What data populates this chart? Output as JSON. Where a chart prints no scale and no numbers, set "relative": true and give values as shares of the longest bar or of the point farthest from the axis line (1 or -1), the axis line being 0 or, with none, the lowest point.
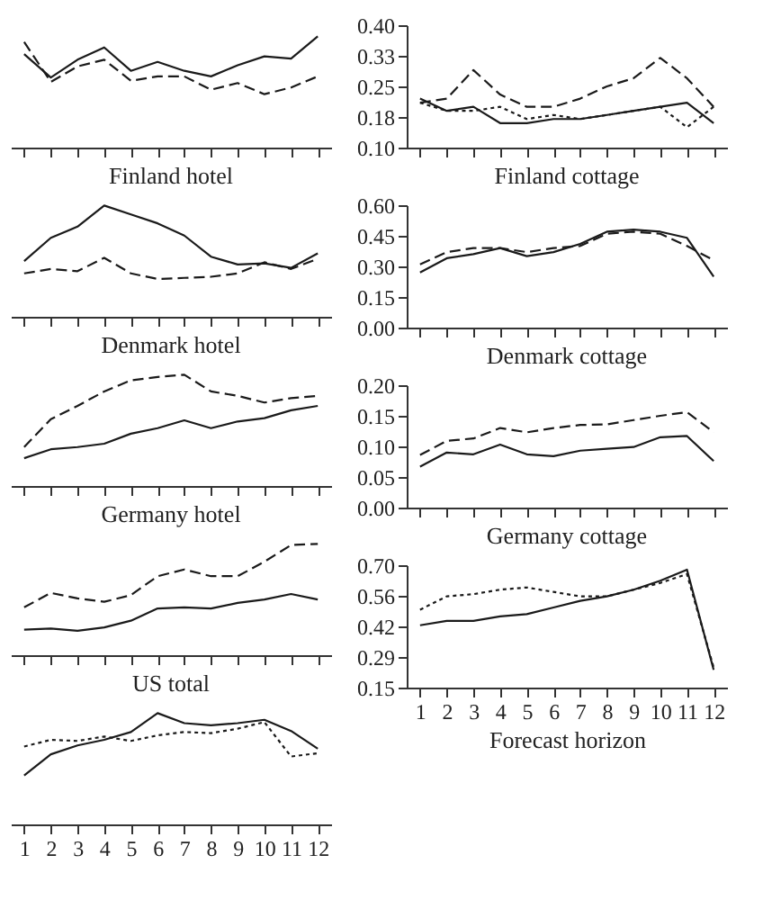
{
  "chart_data": [
    {
      "type": "line",
      "relative": true,
      "x": [
        1,
        2,
        3,
        4,
        5,
        6,
        7,
        8,
        9,
        10,
        11,
        12
      ],
      "xlim": [
        0.5,
        12.5
      ],
      "xticks": [
        1,
        2,
        3,
        4,
        5,
        6,
        7,
        8,
        9,
        10,
        11,
        12
      ],
      "tick_labels": false,
      "series": [
        {
          "color": "#1a1a1a",
          "line_style": "solid",
          "values": [
            0.84,
            0.63,
            0.79,
            0.9,
            0.69,
            0.77,
            0.69,
            0.64,
            0.74,
            0.82,
            0.8,
            1
          ]
        },
        {
          "color": "#1a1a1a",
          "line_style": "dashed",
          "values": [
            0.95,
            0.59,
            0.73,
            0.79,
            0.6,
            0.64,
            0.64,
            0.52,
            0.58,
            0.48,
            0.54,
            0.64
          ]
        }
      ]
    },
    {
      "type": "line",
      "x": [
        1,
        2,
        3,
        4,
        5,
        6,
        7,
        8,
        9,
        10,
        11,
        12
      ],
      "xlim": [
        0.5,
        12.5
      ],
      "xticks": [
        1,
        2,
        3,
        4,
        5,
        6,
        7,
        8,
        9,
        10,
        11,
        12
      ],
      "ylim": [
        0.1,
        0.4
      ],
      "yticks": [
        {
          "value": 0.1,
          "label": "0.10"
        },
        {
          "value": 0.175,
          "label": "0.18"
        },
        {
          "value": 0.25,
          "label": "0.25"
        },
        {
          "value": 0.325,
          "label": "0.33"
        },
        {
          "value": 0.4,
          "label": "0.40"
        }
      ],
      "tick_labels": "y",
      "series": [
        {
          "color": "#1a1a1a",
          "line_style": "solid",
          "values": [
            0.22,
            0.19,
            0.2,
            0.16,
            0.16,
            0.17,
            0.17,
            0.18,
            0.19,
            0.2,
            0.21,
            0.16
          ]
        },
        {
          "color": "#1a1a1a",
          "line_style": "dashed",
          "values": [
            0.21,
            0.22,
            0.29,
            0.23,
            0.2,
            0.2,
            0.22,
            0.25,
            0.27,
            0.32,
            0.27,
            0.2
          ]
        },
        {
          "color": "#1a1a1a",
          "line_style": "dotted",
          "values": [
            0.21,
            0.19,
            0.19,
            0.2,
            0.17,
            0.18,
            0.17,
            0.18,
            0.19,
            0.2,
            0.15,
            0.2
          ]
        }
      ]
    },
    {
      "type": "line",
      "title": "Finland hotel",
      "relative": true,
      "x": [
        1,
        2,
        3,
        4,
        5,
        6,
        7,
        8,
        9,
        10,
        11,
        12
      ],
      "xlim": [
        0.5,
        12.5
      ],
      "xticks": [
        1,
        2,
        3,
        4,
        5,
        6,
        7,
        8,
        9,
        10,
        11,
        12
      ],
      "tick_labels": false,
      "series": [
        {
          "color": "#1a1a1a",
          "line_style": "solid",
          "values": [
            0.5,
            0.71,
            0.81,
            1,
            0.92,
            0.84,
            0.73,
            0.54,
            0.47,
            0.48,
            0.44,
            0.57
          ]
        },
        {
          "color": "#1a1a1a",
          "line_style": "dashed",
          "values": [
            0.39,
            0.43,
            0.41,
            0.53,
            0.39,
            0.34,
            0.35,
            0.36,
            0.39,
            0.49,
            0.43,
            0.52
          ]
        }
      ]
    },
    {
      "type": "line",
      "title": "Finland cottage",
      "x": [
        1,
        2,
        3,
        4,
        5,
        6,
        7,
        8,
        9,
        10,
        11,
        12
      ],
      "xlim": [
        0.5,
        12.5
      ],
      "xticks": [
        1,
        2,
        3,
        4,
        5,
        6,
        7,
        8,
        9,
        10,
        11,
        12
      ],
      "ylim": [
        0,
        0.6
      ],
      "yticks": [
        {
          "value": 0,
          "label": "0.00"
        },
        {
          "value": 0.15,
          "label": "0.15"
        },
        {
          "value": 0.3,
          "label": "0.30"
        },
        {
          "value": 0.45,
          "label": "0.45"
        },
        {
          "value": 0.6,
          "label": "0.60"
        }
      ],
      "tick_labels": "y",
      "series": [
        {
          "color": "#1a1a1a",
          "line_style": "solid",
          "values": [
            0.27,
            0.34,
            0.36,
            0.39,
            0.35,
            0.37,
            0.41,
            0.47,
            0.48,
            0.47,
            0.44,
            0.25
          ]
        },
        {
          "color": "#1a1a1a",
          "line_style": "dashed",
          "values": [
            0.31,
            0.37,
            0.39,
            0.39,
            0.37,
            0.39,
            0.4,
            0.46,
            0.47,
            0.46,
            0.4,
            0.33
          ]
        }
      ]
    },
    {
      "type": "line",
      "title": "Denmark hotel",
      "relative": true,
      "x": [
        1,
        2,
        3,
        4,
        5,
        6,
        7,
        8,
        9,
        10,
        11,
        12
      ],
      "xlim": [
        0.5,
        12.5
      ],
      "xticks": [
        1,
        2,
        3,
        4,
        5,
        6,
        7,
        8,
        9,
        10,
        11,
        12
      ],
      "tick_labels": false,
      "series": [
        {
          "color": "#1a1a1a",
          "line_style": "solid",
          "values": [
            0.25,
            0.33,
            0.35,
            0.38,
            0.47,
            0.52,
            0.59,
            0.52,
            0.58,
            0.61,
            0.68,
            0.72
          ]
        },
        {
          "color": "#1a1a1a",
          "line_style": "dashed",
          "values": [
            0.35,
            0.6,
            0.72,
            0.85,
            0.95,
            0.98,
            1,
            0.85,
            0.81,
            0.75,
            0.79,
            0.81
          ]
        }
      ]
    },
    {
      "type": "line",
      "title": "Denmark cottage",
      "x": [
        1,
        2,
        3,
        4,
        5,
        6,
        7,
        8,
        9,
        10,
        11,
        12
      ],
      "xlim": [
        0.5,
        12.5
      ],
      "xticks": [
        1,
        2,
        3,
        4,
        5,
        6,
        7,
        8,
        9,
        10,
        11,
        12
      ],
      "ylim": [
        0,
        0.2
      ],
      "yticks": [
        {
          "value": 0,
          "label": "0.00"
        },
        {
          "value": 0.05,
          "label": "0.05"
        },
        {
          "value": 0.1,
          "label": "0.10"
        },
        {
          "value": 0.15,
          "label": "0.15"
        },
        {
          "value": 0.2,
          "label": "0.20"
        }
      ],
      "tick_labels": "y",
      "series": [
        {
          "color": "#1a1a1a",
          "line_style": "solid",
          "values": [
            0.067,
            0.09,
            0.087,
            0.103,
            0.087,
            0.084,
            0.093,
            0.096,
            0.099,
            0.115,
            0.117,
            0.076
          ]
        },
        {
          "color": "#1a1a1a",
          "line_style": "dashed",
          "values": [
            0.086,
            0.109,
            0.113,
            0.13,
            0.123,
            0.13,
            0.135,
            0.136,
            0.143,
            0.15,
            0.156,
            0.123
          ]
        }
      ]
    },
    {
      "type": "line",
      "title": "Germany hotel",
      "relative": true,
      "x": [
        1,
        2,
        3,
        4,
        5,
        6,
        7,
        8,
        9,
        10,
        11,
        12
      ],
      "xlim": [
        0.5,
        12.5
      ],
      "xticks": [
        1,
        2,
        3,
        4,
        5,
        6,
        7,
        8,
        9,
        10,
        11,
        12
      ],
      "tick_labels": false,
      "series": [
        {
          "color": "#1a1a1a",
          "line_style": "solid",
          "values": [
            0.23,
            0.24,
            0.22,
            0.25,
            0.31,
            0.42,
            0.43,
            0.42,
            0.47,
            0.5,
            0.55,
            0.5
          ]
        },
        {
          "color": "#1a1a1a",
          "line_style": "dashed",
          "values": [
            0.43,
            0.56,
            0.51,
            0.48,
            0.54,
            0.71,
            0.77,
            0.71,
            0.71,
            0.84,
            0.99,
            1
          ]
        }
      ]
    },
    {
      "type": "line",
      "title": "Germany cottage",
      "xlabel": "Forecast horizon",
      "x": [
        1,
        2,
        3,
        4,
        5,
        6,
        7,
        8,
        9,
        10,
        11,
        12
      ],
      "xlim": [
        0.5,
        12.5
      ],
      "xticks": [
        1,
        2,
        3,
        4,
        5,
        6,
        7,
        8,
        9,
        10,
        11,
        12
      ],
      "ylim": [
        0.15,
        0.7
      ],
      "yticks": [
        {
          "value": 0.15,
          "label": "0.15"
        },
        {
          "value": 0.2875,
          "label": "0.29"
        },
        {
          "value": 0.425,
          "label": "0.42"
        },
        {
          "value": 0.5625,
          "label": "0.56"
        },
        {
          "value": 0.7,
          "label": "0.70"
        }
      ],
      "series": [
        {
          "color": "#1a1a1a",
          "line_style": "solid",
          "values": [
            0.43,
            0.45,
            0.45,
            0.47,
            0.48,
            0.51,
            0.54,
            0.56,
            0.59,
            0.63,
            0.68,
            0.23
          ]
        },
        {
          "color": "#1a1a1a",
          "line_style": "dotted",
          "values": [
            0.5,
            0.56,
            0.57,
            0.59,
            0.6,
            0.58,
            0.56,
            0.56,
            0.59,
            0.62,
            0.66,
            0.24
          ]
        }
      ]
    },
    {
      "type": "line",
      "title": "US total",
      "relative": true,
      "x": [
        1,
        2,
        3,
        4,
        5,
        6,
        7,
        8,
        9,
        10,
        11,
        12
      ],
      "xlim": [
        0.5,
        12.5
      ],
      "xticks": [
        1,
        2,
        3,
        4,
        5,
        6,
        7,
        8,
        9,
        10,
        11,
        12
      ],
      "tick_labels": "x",
      "series": [
        {
          "color": "#1a1a1a",
          "line_style": "solid",
          "values": [
            0.44,
            0.63,
            0.71,
            0.76,
            0.83,
            1,
            0.91,
            0.89,
            0.91,
            0.94,
            0.84,
            0.68
          ]
        },
        {
          "color": "#1a1a1a",
          "line_style": "dotted",
          "values": [
            0.7,
            0.76,
            0.75,
            0.79,
            0.75,
            0.8,
            0.83,
            0.82,
            0.86,
            0.92,
            0.61,
            0.64
          ]
        }
      ]
    }
  ]
}
